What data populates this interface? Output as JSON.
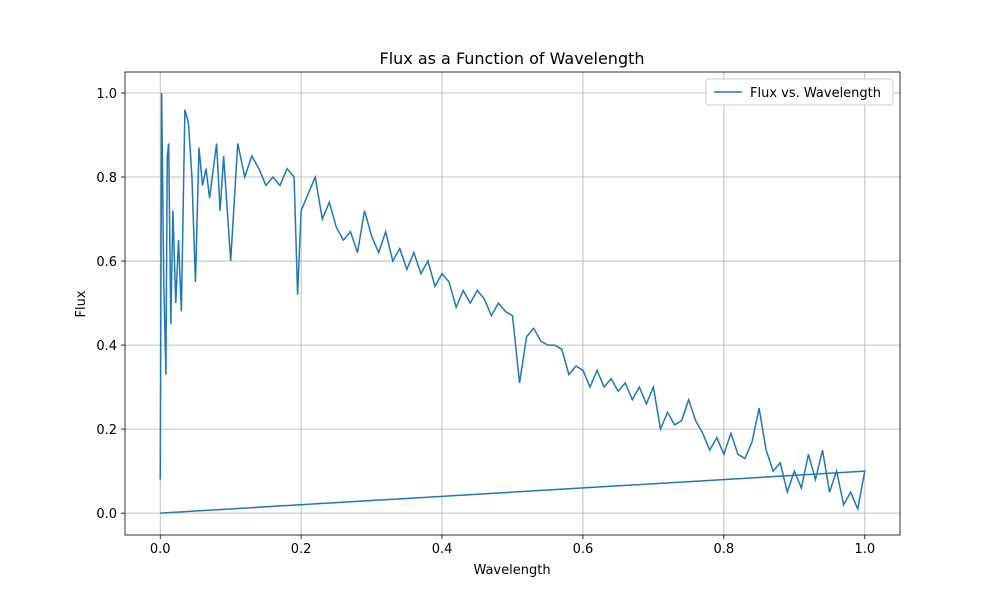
{
  "chart_data": {
    "type": "line",
    "title": "Flux as a Function of Wavelength",
    "x_label": "Wavelength",
    "y_label": "Flux",
    "x": [
      0,
      0.002,
      0.005,
      0.008,
      0.01,
      0.012,
      0.015,
      0.018,
      0.022,
      0.026,
      0.03,
      0.035,
      0.04,
      0.045,
      0.05,
      0.055,
      0.06,
      0.065,
      0.07,
      0.08,
      0.085,
      0.09,
      0.1,
      0.11,
      0.12,
      0.13,
      0.14,
      0.15,
      0.16,
      0.17,
      0.18,
      0.19,
      0.195,
      0.2,
      0.21,
      0.22,
      0.23,
      0.24,
      0.25,
      0.26,
      0.27,
      0.28,
      0.29,
      0.3,
      0.31,
      0.32,
      0.33,
      0.34,
      0.35,
      0.36,
      0.37,
      0.38,
      0.39,
      0.4,
      0.41,
      0.42,
      0.43,
      0.44,
      0.45,
      0.46,
      0.47,
      0.48,
      0.49,
      0.5,
      0.51,
      0.52,
      0.53,
      0.54,
      0.55,
      0.56,
      0.57,
      0.58,
      0.59,
      0.6,
      0.61,
      0.62,
      0.63,
      0.64,
      0.65,
      0.66,
      0.67,
      0.68,
      0.69,
      0.7,
      0.71,
      0.72,
      0.73,
      0.74,
      0.75,
      0.76,
      0.77,
      0.78,
      0.79,
      0.8,
      0.81,
      0.82,
      0.83,
      0.84,
      0.85,
      0.86,
      0.87,
      0.88,
      0.89,
      0.9,
      0.91,
      0.92,
      0.93,
      0.94,
      0.95,
      0.96,
      0.97,
      0.98,
      0.99,
      1.0,
      0
    ],
    "series": [
      {
        "name": "Flux vs. Wavelength",
        "color": "#1f77b4",
        "values": [
          0.08,
          1.0,
          0.55,
          0.33,
          0.85,
          0.88,
          0.45,
          0.72,
          0.5,
          0.65,
          0.48,
          0.96,
          0.93,
          0.8,
          0.55,
          0.87,
          0.78,
          0.82,
          0.75,
          0.88,
          0.72,
          0.85,
          0.6,
          0.88,
          0.8,
          0.85,
          0.82,
          0.78,
          0.8,
          0.78,
          0.82,
          0.8,
          0.52,
          0.72,
          0.76,
          0.8,
          0.7,
          0.74,
          0.68,
          0.65,
          0.67,
          0.62,
          0.72,
          0.66,
          0.62,
          0.67,
          0.6,
          0.63,
          0.58,
          0.62,
          0.57,
          0.6,
          0.54,
          0.57,
          0.55,
          0.49,
          0.53,
          0.5,
          0.53,
          0.51,
          0.47,
          0.5,
          0.48,
          0.47,
          0.31,
          0.42,
          0.44,
          0.41,
          0.4,
          0.4,
          0.39,
          0.33,
          0.35,
          0.34,
          0.3,
          0.34,
          0.3,
          0.32,
          0.29,
          0.31,
          0.27,
          0.3,
          0.26,
          0.3,
          0.2,
          0.24,
          0.21,
          0.22,
          0.27,
          0.22,
          0.19,
          0.15,
          0.18,
          0.14,
          0.19,
          0.14,
          0.13,
          0.17,
          0.25,
          0.15,
          0.1,
          0.12,
          0.05,
          0.1,
          0.06,
          0.14,
          0.08,
          0.15,
          0.05,
          0.1,
          0.02,
          0.05,
          0.01,
          0.1,
          0
        ]
      }
    ],
    "xlim": [
      -0.05,
      1.05
    ],
    "ylim": [
      -0.052,
      1.05
    ],
    "xticks": [
      0.0,
      0.2,
      0.4,
      0.6,
      0.8,
      1.0
    ],
    "yticks": [
      0.0,
      0.2,
      0.4,
      0.6,
      0.8,
      1.0
    ],
    "xtick_labels": [
      "0.0",
      "0.2",
      "0.4",
      "0.6",
      "0.8",
      "1.0"
    ],
    "ytick_labels": [
      "0.0",
      "0.2",
      "0.4",
      "0.6",
      "0.8",
      "1.0"
    ],
    "grid": true,
    "legend": "upper right"
  }
}
